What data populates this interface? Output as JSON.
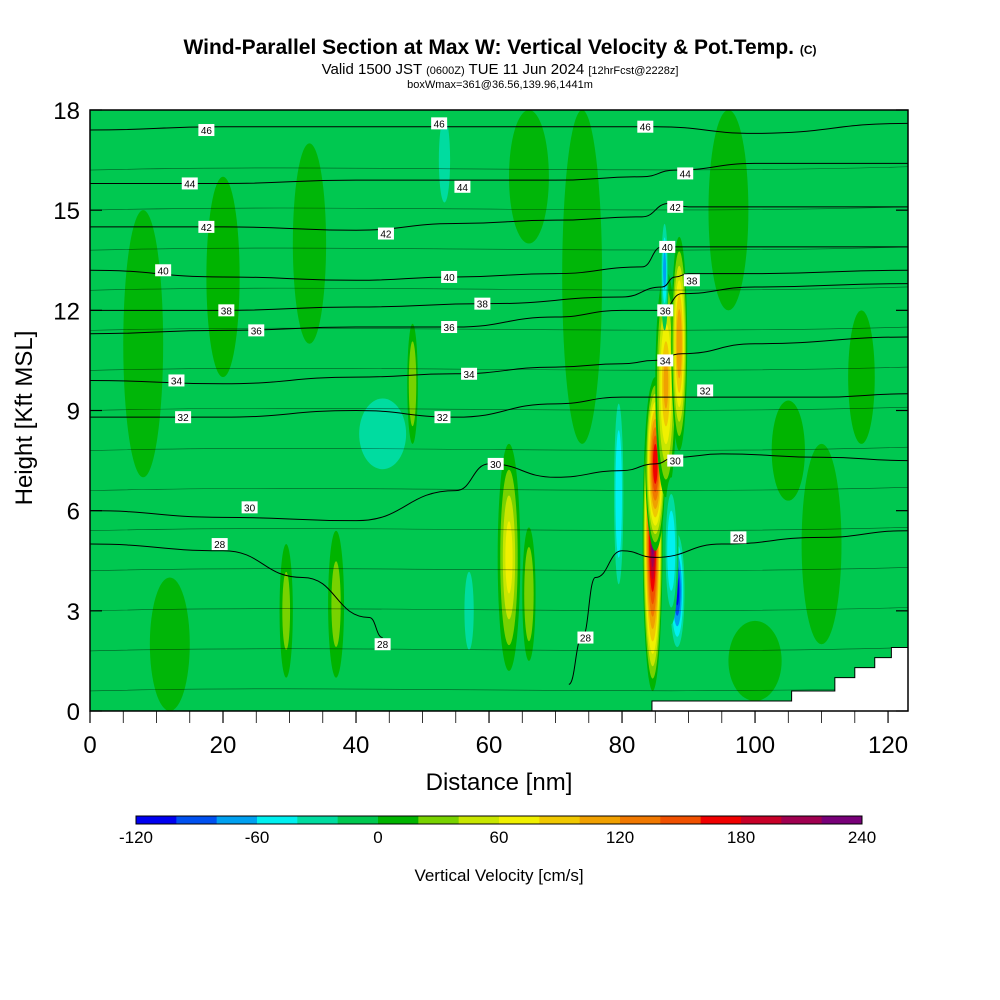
{
  "title": {
    "main": "Wind-Parallel Section at Max W: Vertical Velocity & Pot.Temp.",
    "copyright": "(C)",
    "valid_prefix": "Valid 1500 JST",
    "valid_utc": "(0600Z)",
    "valid_date": "TUE 11 Jun 2024",
    "forecast": "[12hrFcst@2228z]",
    "box": "boxWmax=361@36.56,139.96,1441m"
  },
  "chart_data": {
    "type": "heatmap",
    "xlabel": "Distance [nm]",
    "ylabel": "Height [Kft MSL]",
    "xlim": [
      0,
      123
    ],
    "ylim": [
      0,
      18
    ],
    "x_ticks": [
      0,
      20,
      40,
      60,
      80,
      100,
      120
    ],
    "y_ticks": [
      0,
      3,
      6,
      9,
      12,
      15,
      18
    ],
    "colorbar": {
      "title": "Vertical Velocity [cm/s]",
      "tick_values": [
        -120,
        -60,
        0,
        60,
        120,
        180,
        240
      ],
      "tick_labels": [
        "-120",
        "-60",
        "0",
        "60",
        "120",
        "180",
        "240"
      ],
      "levels": [
        -120,
        -100,
        -80,
        -60,
        -40,
        -20,
        0,
        20,
        40,
        60,
        80,
        100,
        120,
        140,
        160,
        180,
        200,
        220,
        240
      ],
      "colors": [
        "#0000f0",
        "#0050f0",
        "#00a0f0",
        "#00f0f0",
        "#00dca0",
        "#00c850",
        "#00b400",
        "#78d200",
        "#c8e600",
        "#f0f000",
        "#f0c800",
        "#f0a000",
        "#f07800",
        "#f05000",
        "#f00000",
        "#c80028",
        "#a00050",
        "#780078"
      ]
    },
    "background_level_color": "#00c850",
    "vertical_velocity_features": [
      {
        "x": 84.6,
        "y": 5.2,
        "w": 1.5,
        "h": 4.6,
        "value": 230
      },
      {
        "x": 85.0,
        "y": 7.4,
        "w": 1.5,
        "h": 2.6,
        "value": 180
      },
      {
        "x": 86.6,
        "y": 9.8,
        "w": 1.6,
        "h": 3.4,
        "value": 110
      },
      {
        "x": 88.6,
        "y": 11.0,
        "w": 1.2,
        "h": 3.2,
        "value": 120
      },
      {
        "x": 88.3,
        "y": 3.6,
        "w": 1.3,
        "h": 2.0,
        "value": -120
      },
      {
        "x": 87.4,
        "y": 4.8,
        "w": 1.1,
        "h": 2.2,
        "value": -60
      },
      {
        "x": 79.5,
        "y": 6.5,
        "w": 0.9,
        "h": 3.5,
        "value": -60
      },
      {
        "x": 86.4,
        "y": 13.2,
        "w": 0.6,
        "h": 1.8,
        "value": -70
      },
      {
        "x": 63.0,
        "y": 4.6,
        "w": 1.7,
        "h": 3.4,
        "value": 70
      },
      {
        "x": 44.0,
        "y": 8.3,
        "w": 5.0,
        "h": 1.5,
        "value": -40
      },
      {
        "x": 53.3,
        "y": 16.5,
        "w": 1.2,
        "h": 1.8,
        "value": -40
      },
      {
        "x": 48.5,
        "y": 9.8,
        "w": 0.8,
        "h": 1.8,
        "value": 40
      },
      {
        "x": 29.5,
        "y": 3.0,
        "w": 1.0,
        "h": 2.0,
        "value": 30
      },
      {
        "x": 37.0,
        "y": 3.2,
        "w": 1.2,
        "h": 2.2,
        "value": 30
      },
      {
        "x": 66.0,
        "y": 3.5,
        "w": 1.0,
        "h": 2.0,
        "value": 40
      },
      {
        "x": 57.0,
        "y": 3.0,
        "w": 1.2,
        "h": 2.0,
        "value": -30
      },
      {
        "x": 105.0,
        "y": 7.8,
        "w": 2.5,
        "h": 1.5,
        "value": 15
      },
      {
        "x": 116.0,
        "y": 10.0,
        "w": 2.0,
        "h": 2.0,
        "value": 15
      },
      {
        "x": 20.0,
        "y": 13.0,
        "w": 2.5,
        "h": 3.0,
        "value": 10
      }
    ],
    "terrain_masked_polygon": [
      [
        84.5,
        0
      ],
      [
        84.5,
        0.3
      ],
      [
        105.5,
        0.3
      ],
      [
        105.5,
        0.6
      ],
      [
        112,
        0.6
      ],
      [
        112,
        1.0
      ],
      [
        115,
        1.0
      ],
      [
        115,
        1.3
      ],
      [
        118,
        1.3
      ],
      [
        118,
        1.6
      ],
      [
        120.5,
        1.6
      ],
      [
        120.5,
        1.9
      ],
      [
        123,
        1.9
      ],
      [
        123,
        0
      ]
    ],
    "potential_temperature_contours": [
      {
        "level": "28",
        "points": [
          [
            0,
            5.0
          ],
          [
            20,
            4.8
          ],
          [
            32,
            4.0
          ],
          [
            42,
            2.8
          ],
          [
            44,
            2.2
          ]
        ]
      },
      {
        "level": "28",
        "points": [
          [
            72,
            0.8
          ],
          [
            74,
            2.2
          ],
          [
            76,
            4.0
          ],
          [
            80,
            4.8
          ],
          [
            85,
            4.6
          ],
          [
            95,
            5.0
          ],
          [
            110,
            5.2
          ],
          [
            123,
            5.4
          ]
        ]
      },
      {
        "level": "30",
        "points": [
          [
            0,
            6.0
          ],
          [
            20,
            5.8
          ],
          [
            40,
            5.7
          ],
          [
            55,
            6.6
          ],
          [
            60,
            7.4
          ],
          [
            70,
            7.0
          ],
          [
            80,
            7.2
          ],
          [
            85,
            7.4
          ],
          [
            88,
            7.6
          ],
          [
            95,
            7.7
          ],
          [
            110,
            7.6
          ],
          [
            123,
            7.5
          ]
        ]
      },
      {
        "level": "32",
        "points": [
          [
            0,
            8.8
          ],
          [
            20,
            8.8
          ],
          [
            40,
            9.0
          ],
          [
            55,
            8.8
          ],
          [
            70,
            9.2
          ],
          [
            80,
            9.4
          ],
          [
            88,
            9.4
          ],
          [
            95,
            9.4
          ],
          [
            110,
            9.4
          ],
          [
            123,
            9.5
          ]
        ]
      },
      {
        "level": "34",
        "points": [
          [
            0,
            9.9
          ],
          [
            20,
            9.8
          ],
          [
            40,
            10.0
          ],
          [
            55,
            10.1
          ],
          [
            70,
            10.3
          ],
          [
            80,
            10.4
          ],
          [
            85,
            10.5
          ],
          [
            89,
            10.7
          ],
          [
            100,
            11.0
          ],
          [
            123,
            11.2
          ]
        ]
      },
      {
        "level": "36",
        "points": [
          [
            0,
            11.3
          ],
          [
            20,
            11.4
          ],
          [
            40,
            11.5
          ],
          [
            55,
            11.5
          ],
          [
            70,
            11.8
          ],
          [
            80,
            12.0
          ],
          [
            86,
            12.0
          ],
          [
            89,
            12.5
          ],
          [
            100,
            12.7
          ],
          [
            123,
            12.8
          ]
        ]
      },
      {
        "level": "38",
        "points": [
          [
            0,
            12.0
          ],
          [
            20,
            12.0
          ],
          [
            40,
            12.1
          ],
          [
            60,
            12.2
          ],
          [
            80,
            12.4
          ],
          [
            86,
            12.7
          ],
          [
            88,
            13.0
          ],
          [
            90,
            13.1
          ],
          [
            100,
            13.1
          ],
          [
            123,
            13.2
          ]
        ]
      },
      {
        "level": "40",
        "points": [
          [
            0,
            13.2
          ],
          [
            20,
            13.0
          ],
          [
            40,
            12.9
          ],
          [
            55,
            13.0
          ],
          [
            70,
            13.1
          ],
          [
            83,
            13.3
          ],
          [
            86,
            13.9
          ],
          [
            90,
            13.9
          ],
          [
            100,
            13.9
          ],
          [
            123,
            13.9
          ]
        ]
      },
      {
        "level": "42",
        "points": [
          [
            0,
            14.5
          ],
          [
            20,
            14.5
          ],
          [
            40,
            14.4
          ],
          [
            55,
            14.6
          ],
          [
            70,
            14.7
          ],
          [
            83,
            14.8
          ],
          [
            87,
            15.2
          ],
          [
            90,
            15.1
          ],
          [
            100,
            15.1
          ],
          [
            123,
            15.1
          ]
        ]
      },
      {
        "level": "44",
        "points": [
          [
            0,
            15.8
          ],
          [
            20,
            15.8
          ],
          [
            40,
            15.9
          ],
          [
            55,
            15.9
          ],
          [
            70,
            15.9
          ],
          [
            83,
            16.0
          ],
          [
            88,
            16.2
          ],
          [
            100,
            16.4
          ],
          [
            123,
            16.4
          ]
        ]
      },
      {
        "level": "46",
        "points": [
          [
            0,
            17.4
          ],
          [
            20,
            17.5
          ],
          [
            40,
            17.5
          ],
          [
            55,
            17.5
          ],
          [
            70,
            17.5
          ],
          [
            85,
            17.5
          ],
          [
            100,
            17.3
          ],
          [
            123,
            17.6
          ]
        ]
      }
    ],
    "contour_labels": [
      {
        "text": "46",
        "x": 17.5,
        "y": 17.4
      },
      {
        "text": "46",
        "x": 52.5,
        "y": 17.6
      },
      {
        "text": "46",
        "x": 83.5,
        "y": 17.5
      },
      {
        "text": "44",
        "x": 15.0,
        "y": 15.8
      },
      {
        "text": "44",
        "x": 56.0,
        "y": 15.7
      },
      {
        "text": "44",
        "x": 89.5,
        "y": 16.1
      },
      {
        "text": "42",
        "x": 17.5,
        "y": 14.5
      },
      {
        "text": "42",
        "x": 44.5,
        "y": 14.3
      },
      {
        "text": "42",
        "x": 88.0,
        "y": 15.1
      },
      {
        "text": "40",
        "x": 11.0,
        "y": 13.2
      },
      {
        "text": "40",
        "x": 54.0,
        "y": 13.0
      },
      {
        "text": "40",
        "x": 86.8,
        "y": 13.9
      },
      {
        "text": "38",
        "x": 20.5,
        "y": 12.0
      },
      {
        "text": "38",
        "x": 59.0,
        "y": 12.2
      },
      {
        "text": "38",
        "x": 90.5,
        "y": 12.9
      },
      {
        "text": "36",
        "x": 25.0,
        "y": 11.4
      },
      {
        "text": "36",
        "x": 54.0,
        "y": 11.5
      },
      {
        "text": "36",
        "x": 86.5,
        "y": 12.0
      },
      {
        "text": "34",
        "x": 13.0,
        "y": 9.9
      },
      {
        "text": "34",
        "x": 57.0,
        "y": 10.1
      },
      {
        "text": "34",
        "x": 86.5,
        "y": 10.5
      },
      {
        "text": "32",
        "x": 14.0,
        "y": 8.8
      },
      {
        "text": "32",
        "x": 53.0,
        "y": 8.8
      },
      {
        "text": "32",
        "x": 92.5,
        "y": 9.6
      },
      {
        "text": "30",
        "x": 24.0,
        "y": 6.1
      },
      {
        "text": "30",
        "x": 61.0,
        "y": 7.4
      },
      {
        "text": "30",
        "x": 88.0,
        "y": 7.5
      },
      {
        "text": "28",
        "x": 19.5,
        "y": 5.0
      },
      {
        "text": "28",
        "x": 44.0,
        "y": 2.0
      },
      {
        "text": "28",
        "x": 74.5,
        "y": 2.2
      },
      {
        "text": "28",
        "x": 97.5,
        "y": 5.2
      }
    ]
  }
}
